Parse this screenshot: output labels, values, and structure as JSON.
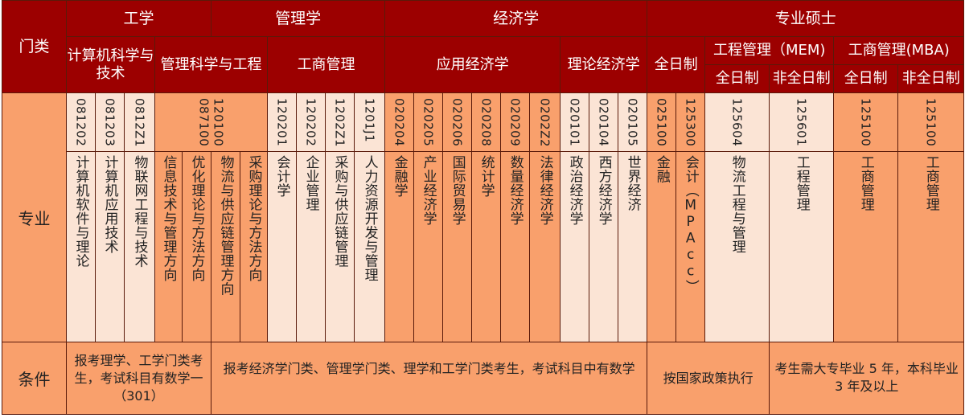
{
  "colors": {
    "header": "#9c0000",
    "orange": "#f9a06c",
    "light": "#fbe4d5"
  },
  "row_labels": {
    "category": "门类",
    "major": "专业",
    "condition": "条件"
  },
  "categories": [
    "工学",
    "管理学",
    "经济学",
    "专业硕士"
  ],
  "subcategories": {
    "cs": "计算机科学与技术",
    "mse": "管理科学与工程",
    "ba": "工商管理",
    "applied_econ": "应用经济学",
    "theory_econ": "理论经济学",
    "fulltime": "全日制",
    "mem": "工程管理（MEM)",
    "mba": "工商管理(MBA)",
    "mem_full": "全日制",
    "mem_part": "非全日制",
    "mba_full": "全日制",
    "mba_part": "非全日制"
  },
  "codes": [
    {
      "text": "081202",
      "span": 1,
      "shade": "light"
    },
    {
      "text": "081203",
      "span": 1,
      "shade": "light"
    },
    {
      "text": "0812Z1",
      "span": 1,
      "shade": "light"
    },
    {
      "text": "120100\n087100",
      "span": 4,
      "shade": "orange"
    },
    {
      "text": "120201",
      "span": 1,
      "shade": "light"
    },
    {
      "text": "120202",
      "span": 1,
      "shade": "light"
    },
    {
      "text": "1202Z1",
      "span": 1,
      "shade": "light"
    },
    {
      "text": "1201J1",
      "span": 1,
      "shade": "light"
    },
    {
      "text": "020204",
      "span": 1,
      "shade": "orange"
    },
    {
      "text": "020205",
      "span": 1,
      "shade": "orange"
    },
    {
      "text": "020206",
      "span": 1,
      "shade": "orange"
    },
    {
      "text": "020208",
      "span": 1,
      "shade": "orange"
    },
    {
      "text": "020209",
      "span": 1,
      "shade": "orange"
    },
    {
      "text": "0202Z2",
      "span": 1,
      "shade": "orange"
    },
    {
      "text": "020101",
      "span": 1,
      "shade": "light"
    },
    {
      "text": "020104",
      "span": 1,
      "shade": "light"
    },
    {
      "text": "020105",
      "span": 1,
      "shade": "light"
    },
    {
      "text": "025100",
      "span": 1,
      "shade": "orange"
    },
    {
      "text": "125300",
      "span": 1,
      "shade": "orange"
    },
    {
      "text": "125604",
      "span": 1,
      "shade": "light"
    },
    {
      "text": "125601",
      "span": 1,
      "shade": "light"
    },
    {
      "text": "125100",
      "span": 1,
      "shade": "orange"
    },
    {
      "text": "125100",
      "span": 1,
      "shade": "orange"
    }
  ],
  "majors": [
    {
      "text": "计算机软件与理论",
      "shade": "light"
    },
    {
      "text": "计算机应用技术",
      "shade": "light"
    },
    {
      "text": "物联网工程与技术",
      "shade": "light"
    },
    {
      "text": "信息技术与管理方向",
      "shade": "orange"
    },
    {
      "text": "优化理论与方法方向",
      "shade": "orange"
    },
    {
      "text": "物流与供应链管理方向",
      "shade": "orange"
    },
    {
      "text": "采购理论与方法方向",
      "shade": "orange"
    },
    {
      "text": "会计学",
      "shade": "light"
    },
    {
      "text": "企业管理",
      "shade": "light"
    },
    {
      "text": "采购与供应链管理",
      "shade": "light"
    },
    {
      "text": "人力资源开发与管理",
      "shade": "light"
    },
    {
      "text": "金融学",
      "shade": "orange"
    },
    {
      "text": "产业经济学",
      "shade": "orange"
    },
    {
      "text": "国际贸易学",
      "shade": "orange"
    },
    {
      "text": "统计学",
      "shade": "orange"
    },
    {
      "text": "数量经济学",
      "shade": "orange"
    },
    {
      "text": "法律经济学",
      "shade": "orange"
    },
    {
      "text": "政治经济学",
      "shade": "light"
    },
    {
      "text": "西方经济学",
      "shade": "light"
    },
    {
      "text": "世界经济",
      "shade": "light"
    },
    {
      "text": "金融",
      "shade": "orange"
    },
    {
      "text": "会计（MPAcc）",
      "shade": "orange"
    },
    {
      "text": "物流工程与管理",
      "shade": "light"
    },
    {
      "text": "工程管理",
      "shade": "light"
    },
    {
      "text": "工商管理",
      "shade": "orange"
    },
    {
      "text": "工商管理",
      "shade": "orange"
    }
  ],
  "conditions": [
    "报考理学、工学门类考生，考试科目有数学一（301）",
    "报考经济学门类、管理学门类、理学和工学门类考生，考试科目中有数学",
    "按国家政策执行",
    "考生需大专毕业 5 年，本科毕业 3 年及以上"
  ]
}
